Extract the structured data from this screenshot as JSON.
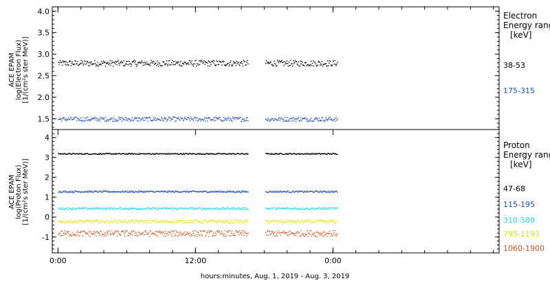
{
  "chart_data": [
    {
      "type": "scatter",
      "panel": "electron",
      "ylabel_lines": [
        "ACE EPAM",
        "log(Electron Flux)",
        "[1/(cm²s ster MeV)]"
      ],
      "ylim": [
        1.25,
        4.1
      ],
      "yticks": [
        "1.5",
        "2.0",
        "2.5",
        "3.0",
        "3.5",
        "4.0"
      ],
      "legend_title": [
        "Electron",
        "Energy ranges",
        "[keV]"
      ],
      "series": [
        {
          "name": "38-53",
          "color": "#000000",
          "level": 2.8,
          "spread": 0.07,
          "x": [
            0,
            16.6
          ],
          "x2": [
            18.1,
            24.4
          ]
        },
        {
          "name": "175-315",
          "color": "#1a4fd0",
          "level": 1.5,
          "spread": 0.05,
          "x": [
            0,
            16.6
          ],
          "x2": [
            18.1,
            24.4
          ]
        }
      ]
    },
    {
      "type": "scatter",
      "panel": "proton",
      "ylabel_lines": [
        "ACE EPAM",
        "log(Proton Flux)",
        "[1/(cm²s ster MeV)]"
      ],
      "ylim": [
        -1.8,
        4.4
      ],
      "yticks": [
        "-1",
        "0",
        "1",
        "2",
        "3",
        "4"
      ],
      "legend_title": [
        "Proton",
        "Energy ranges",
        "[keV]"
      ],
      "series": [
        {
          "name": "47-68",
          "color": "#000000",
          "level": 3.2,
          "spread": 0.03,
          "x": [
            0,
            16.6
          ],
          "x2": [
            18.1,
            24.4
          ]
        },
        {
          "name": "115-195",
          "color": "#1a4fd0",
          "level": 1.3,
          "spread": 0.04,
          "x": [
            0,
            16.6
          ],
          "x2": [
            18.1,
            24.4
          ]
        },
        {
          "name": "310-580",
          "color": "#22e0e6",
          "level": 0.45,
          "spread": 0.05,
          "x": [
            0,
            16.6
          ],
          "x2": [
            18.1,
            24.4
          ]
        },
        {
          "name": "795-1193",
          "color": "#e6e600",
          "level": -0.2,
          "spread": 0.08,
          "x": [
            0,
            16.6
          ],
          "x2": [
            18.1,
            24.4
          ]
        },
        {
          "name": "1060-1900",
          "color": "#e0501a",
          "level": -0.8,
          "spread": 0.15,
          "x": [
            0,
            16.6
          ],
          "x2": [
            18.1,
            24.4
          ]
        }
      ]
    }
  ],
  "x_axis": {
    "xlim": [
      -0.5,
      38.5
    ],
    "ticks": [
      {
        "value": 0,
        "label": "0:00"
      },
      {
        "value": 12,
        "label": "12:00"
      },
      {
        "value": 24,
        "label": "0:00"
      }
    ],
    "xlabel": "hours:minutes, Aug.  1, 2019 - Aug.  3, 2019"
  }
}
